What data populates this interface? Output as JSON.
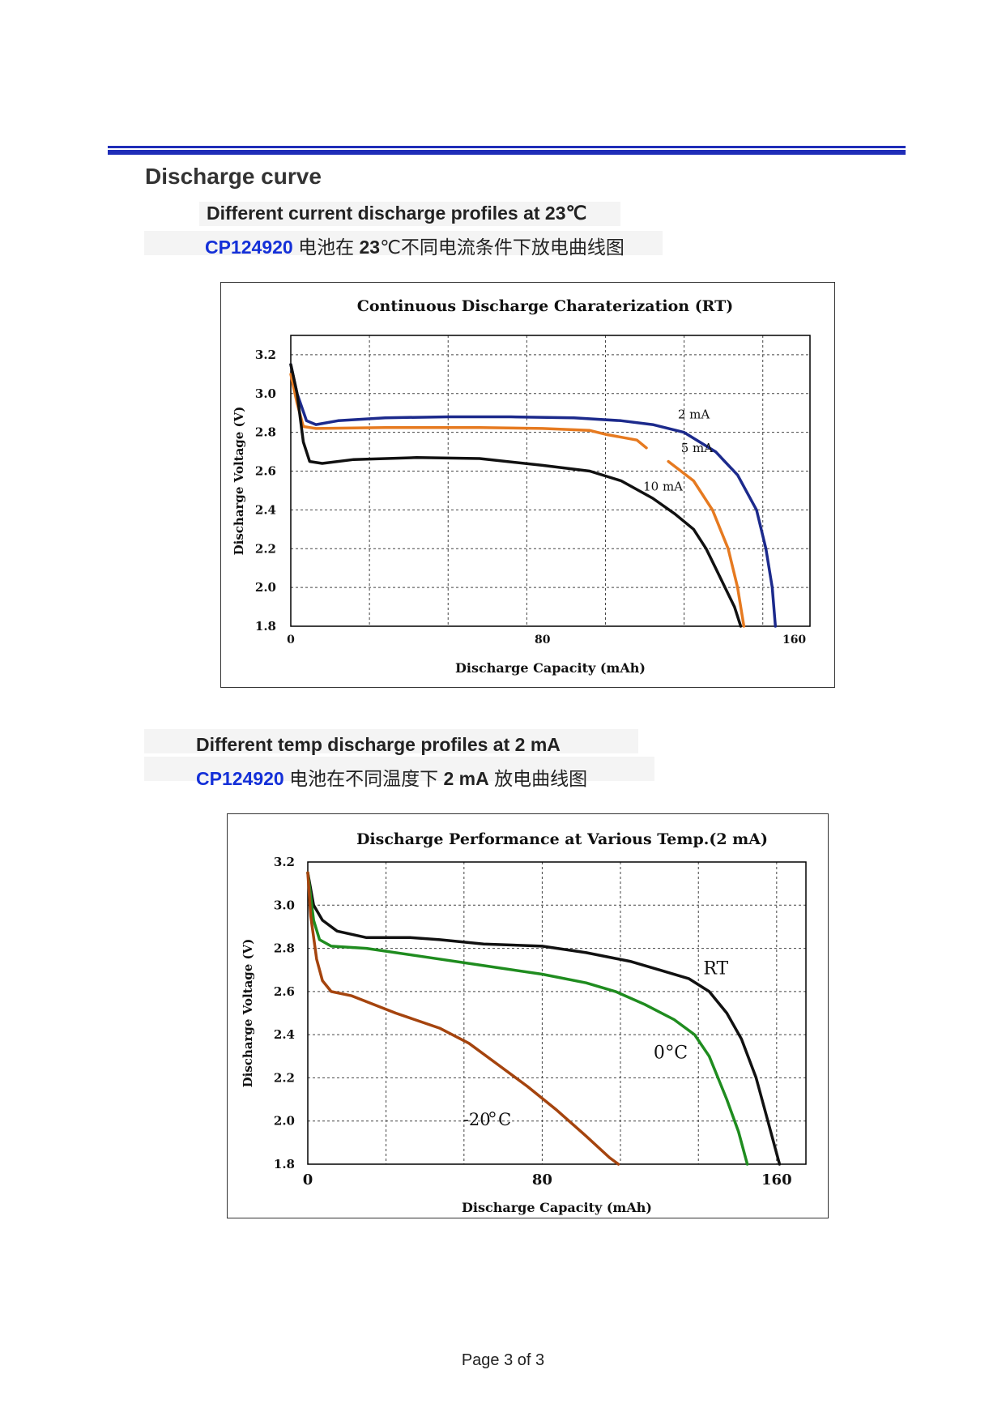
{
  "heading": "Discharge curve",
  "section1": {
    "subtitle": "Different current discharge profiles at 23℃",
    "model": "CP124920",
    "cn_pre": " 电池在 ",
    "cn_bold": "23",
    "cn_post": "℃不同电流条件下放电曲线图"
  },
  "section2": {
    "subtitle": "Different temp discharge profiles at 2 mA",
    "model": "CP124920",
    "cn_pre": " 电池在不同温度下 ",
    "cn_bold": "2 mA",
    "cn_post": " 放电曲线图"
  },
  "footer": "Page 3 of 3",
  "chart_data": [
    {
      "type": "line",
      "title": "Continuous Discharge Charaterization (RT)",
      "xlabel": "Discharge Capacity (mAh)",
      "ylabel": "Discharge Voltage (V)",
      "xlim": [
        0,
        165
      ],
      "ylim": [
        1.8,
        3.3
      ],
      "xticks": [
        "0",
        "80",
        "160"
      ],
      "yticks": [
        "1.8",
        "2.0",
        "2.2",
        "2.4",
        "2.6",
        "2.8",
        "3.0",
        "3.2"
      ],
      "grid": true,
      "series": [
        {
          "name": "2 mA",
          "color": "#1c2a8c",
          "points": [
            [
              0,
              3.15
            ],
            [
              2,
              3.0
            ],
            [
              5,
              2.86
            ],
            [
              8,
              2.84
            ],
            [
              15,
              2.86
            ],
            [
              30,
              2.875
            ],
            [
              50,
              2.88
            ],
            [
              70,
              2.88
            ],
            [
              90,
              2.875
            ],
            [
              105,
              2.86
            ],
            [
              115,
              2.84
            ],
            [
              125,
              2.8
            ],
            [
              135,
              2.7
            ],
            [
              142,
              2.58
            ],
            [
              148,
              2.4
            ],
            [
              151,
              2.2
            ],
            [
              153,
              2.0
            ],
            [
              154,
              1.8
            ]
          ]
        },
        {
          "name": "5 mA",
          "color": "#e67a20",
          "points": [
            [
              0,
              3.1
            ],
            [
              2,
              2.95
            ],
            [
              4,
              2.83
            ],
            [
              8,
              2.82
            ],
            [
              30,
              2.825
            ],
            [
              60,
              2.825
            ],
            [
              80,
              2.82
            ],
            [
              95,
              2.81
            ],
            [
              100,
              2.79
            ],
            [
              110,
              2.76
            ],
            [
              113,
              2.72
            ]
          ]
        },
        {
          "name": "5 mA-tail",
          "color": "#e67a20",
          "points": [
            [
              120,
              2.65
            ],
            [
              128,
              2.55
            ],
            [
              134,
              2.4
            ],
            [
              139,
              2.2
            ],
            [
              142,
              2.0
            ],
            [
              144,
              1.8
            ]
          ]
        },
        {
          "name": "10 mA",
          "color": "#111111",
          "points": [
            [
              0,
              3.15
            ],
            [
              2,
              3.0
            ],
            [
              4,
              2.75
            ],
            [
              6,
              2.65
            ],
            [
              10,
              2.64
            ],
            [
              20,
              2.66
            ],
            [
              40,
              2.67
            ],
            [
              60,
              2.665
            ],
            [
              80,
              2.63
            ],
            [
              95,
              2.6
            ],
            [
              105,
              2.55
            ],
            [
              115,
              2.46
            ],
            [
              122,
              2.38
            ],
            [
              128,
              2.3
            ],
            [
              132,
              2.2
            ],
            [
              135,
              2.1
            ],
            [
              138,
              2.0
            ],
            [
              141,
              1.9
            ],
            [
              143,
              1.8
            ]
          ]
        }
      ],
      "annotations": [
        "2 mA",
        "5 mA",
        "10 mA"
      ]
    },
    {
      "type": "line",
      "title": "Discharge Performance at Various Temp.(2 mA)",
      "xlabel": "Discharge Capacity (mAh)",
      "ylabel": "Discharge Voltage (V)",
      "xlim": [
        0,
        170
      ],
      "ylim": [
        1.8,
        3.2
      ],
      "xticks": [
        "0",
        "80",
        "160"
      ],
      "yticks": [
        "1.8",
        "2.0",
        "2.2",
        "2.4",
        "2.6",
        "2.8",
        "3.0",
        "3.2"
      ],
      "grid": true,
      "series": [
        {
          "name": "RT",
          "color": "#111111",
          "points": [
            [
              0,
              3.15
            ],
            [
              2,
              3.0
            ],
            [
              5,
              2.93
            ],
            [
              10,
              2.88
            ],
            [
              20,
              2.85
            ],
            [
              35,
              2.85
            ],
            [
              45,
              2.84
            ],
            [
              60,
              2.82
            ],
            [
              80,
              2.81
            ],
            [
              95,
              2.78
            ],
            [
              110,
              2.74
            ],
            [
              120,
              2.7
            ],
            [
              130,
              2.66
            ],
            [
              137,
              2.6
            ],
            [
              143,
              2.5
            ],
            [
              148,
              2.38
            ],
            [
              153,
              2.2
            ],
            [
              157,
              2.0
            ],
            [
              161,
              1.8
            ]
          ]
        },
        {
          "name": "0°C",
          "color": "#1f8c1f",
          "points": [
            [
              0,
              3.15
            ],
            [
              2,
              2.93
            ],
            [
              4,
              2.84
            ],
            [
              8,
              2.81
            ],
            [
              20,
              2.8
            ],
            [
              40,
              2.76
            ],
            [
              60,
              2.72
            ],
            [
              80,
              2.68
            ],
            [
              95,
              2.64
            ],
            [
              105,
              2.6
            ],
            [
              115,
              2.54
            ],
            [
              125,
              2.47
            ],
            [
              132,
              2.4
            ],
            [
              137,
              2.3
            ],
            [
              143,
              2.1
            ],
            [
              147,
              1.95
            ],
            [
              150,
              1.8
            ]
          ]
        },
        {
          "name": "-20°C",
          "color": "#a5440e",
          "points": [
            [
              0,
              3.15
            ],
            [
              1,
              2.95
            ],
            [
              3,
              2.75
            ],
            [
              5,
              2.65
            ],
            [
              8,
              2.6
            ],
            [
              15,
              2.58
            ],
            [
              30,
              2.5
            ],
            [
              45,
              2.43
            ],
            [
              55,
              2.36
            ],
            [
              65,
              2.26
            ],
            [
              75,
              2.16
            ],
            [
              85,
              2.05
            ],
            [
              95,
              1.93
            ],
            [
              103,
              1.83
            ],
            [
              106,
              1.8
            ]
          ]
        }
      ],
      "annotations": [
        "RT",
        "0",
        "C",
        "-20",
        "C"
      ]
    }
  ]
}
